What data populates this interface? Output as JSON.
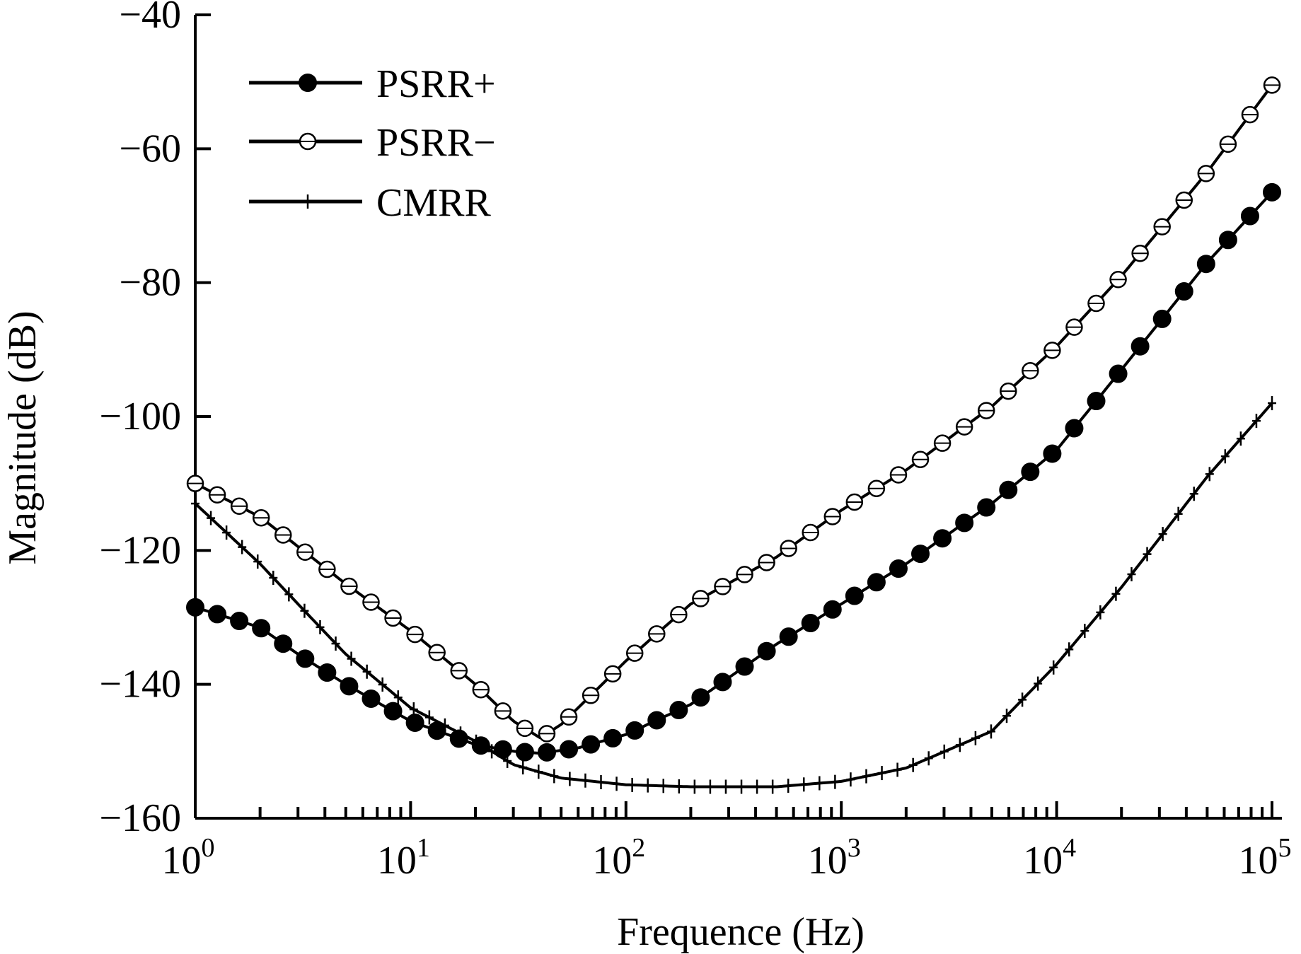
{
  "chart_data": {
    "type": "line",
    "title": "",
    "xlabel": "Frequence (Hz)",
    "ylabel": "Magnitude (dB)",
    "xscale": "log",
    "xlim": [
      1,
      100000
    ],
    "ylim": [
      -160,
      -40
    ],
    "x_ticks": [
      {
        "value": 1,
        "base": "10",
        "exp": "0"
      },
      {
        "value": 10,
        "base": "10",
        "exp": "1"
      },
      {
        "value": 100,
        "base": "10",
        "exp": "2"
      },
      {
        "value": 1000,
        "base": "10",
        "exp": "3"
      },
      {
        "value": 10000,
        "base": "10",
        "exp": "4"
      },
      {
        "value": 100000,
        "base": "10",
        "exp": "5"
      }
    ],
    "y_ticks": [
      {
        "value": -40,
        "label": "−40"
      },
      {
        "value": -60,
        "label": "−60"
      },
      {
        "value": -80,
        "label": "−80"
      },
      {
        "value": -100,
        "label": "−100"
      },
      {
        "value": -120,
        "label": "−120"
      },
      {
        "value": -140,
        "label": "−140"
      },
      {
        "value": -160,
        "label": "−160"
      }
    ],
    "legend_position": "top-left",
    "grid": false,
    "series": [
      {
        "name": "PSRR+",
        "marker": "filled-circle",
        "color": "#000000",
        "points": [
          [
            1,
            -128.5
          ],
          [
            2,
            -131.5
          ],
          [
            3,
            -135.5
          ],
          [
            5,
            -140
          ],
          [
            10,
            -145.5
          ],
          [
            20,
            -149
          ],
          [
            30,
            -150
          ],
          [
            40,
            -150.3
          ],
          [
            60,
            -149.5
          ],
          [
            100,
            -147.5
          ],
          [
            200,
            -143
          ],
          [
            500,
            -134
          ],
          [
            1000,
            -128
          ],
          [
            2000,
            -122
          ],
          [
            5000,
            -113
          ],
          [
            10000,
            -105
          ],
          [
            20000,
            -93
          ],
          [
            50000,
            -77
          ],
          [
            100000,
            -66.5
          ]
        ]
      },
      {
        "name": "PSRR−",
        "marker": "open-circle",
        "color": "#000000",
        "points": [
          [
            1,
            -110
          ],
          [
            2,
            -115
          ],
          [
            5,
            -125
          ],
          [
            10,
            -132
          ],
          [
            20,
            -140
          ],
          [
            30,
            -145.5
          ],
          [
            40,
            -148
          ],
          [
            50,
            -146
          ],
          [
            100,
            -136.5
          ],
          [
            200,
            -128
          ],
          [
            500,
            -121
          ],
          [
            1000,
            -114
          ],
          [
            2000,
            -108
          ],
          [
            5000,
            -98.5
          ],
          [
            10000,
            -89.5
          ],
          [
            20000,
            -79
          ],
          [
            50000,
            -63.5
          ],
          [
            100000,
            -50.5
          ]
        ]
      },
      {
        "name": "CMRR",
        "marker": "plus",
        "color": "#000000",
        "points": [
          [
            1,
            -113
          ],
          [
            2,
            -122
          ],
          [
            3,
            -128
          ],
          [
            5,
            -135.5
          ],
          [
            10,
            -143.5
          ],
          [
            20,
            -148.5
          ],
          [
            30,
            -152
          ],
          [
            50,
            -154
          ],
          [
            100,
            -155
          ],
          [
            200,
            -155.3
          ],
          [
            500,
            -155.3
          ],
          [
            1000,
            -154.5
          ],
          [
            2000,
            -152.5
          ],
          [
            5000,
            -147
          ],
          [
            10000,
            -137
          ],
          [
            20000,
            -125.5
          ],
          [
            50000,
            -109
          ],
          [
            100000,
            -98
          ]
        ]
      }
    ]
  }
}
